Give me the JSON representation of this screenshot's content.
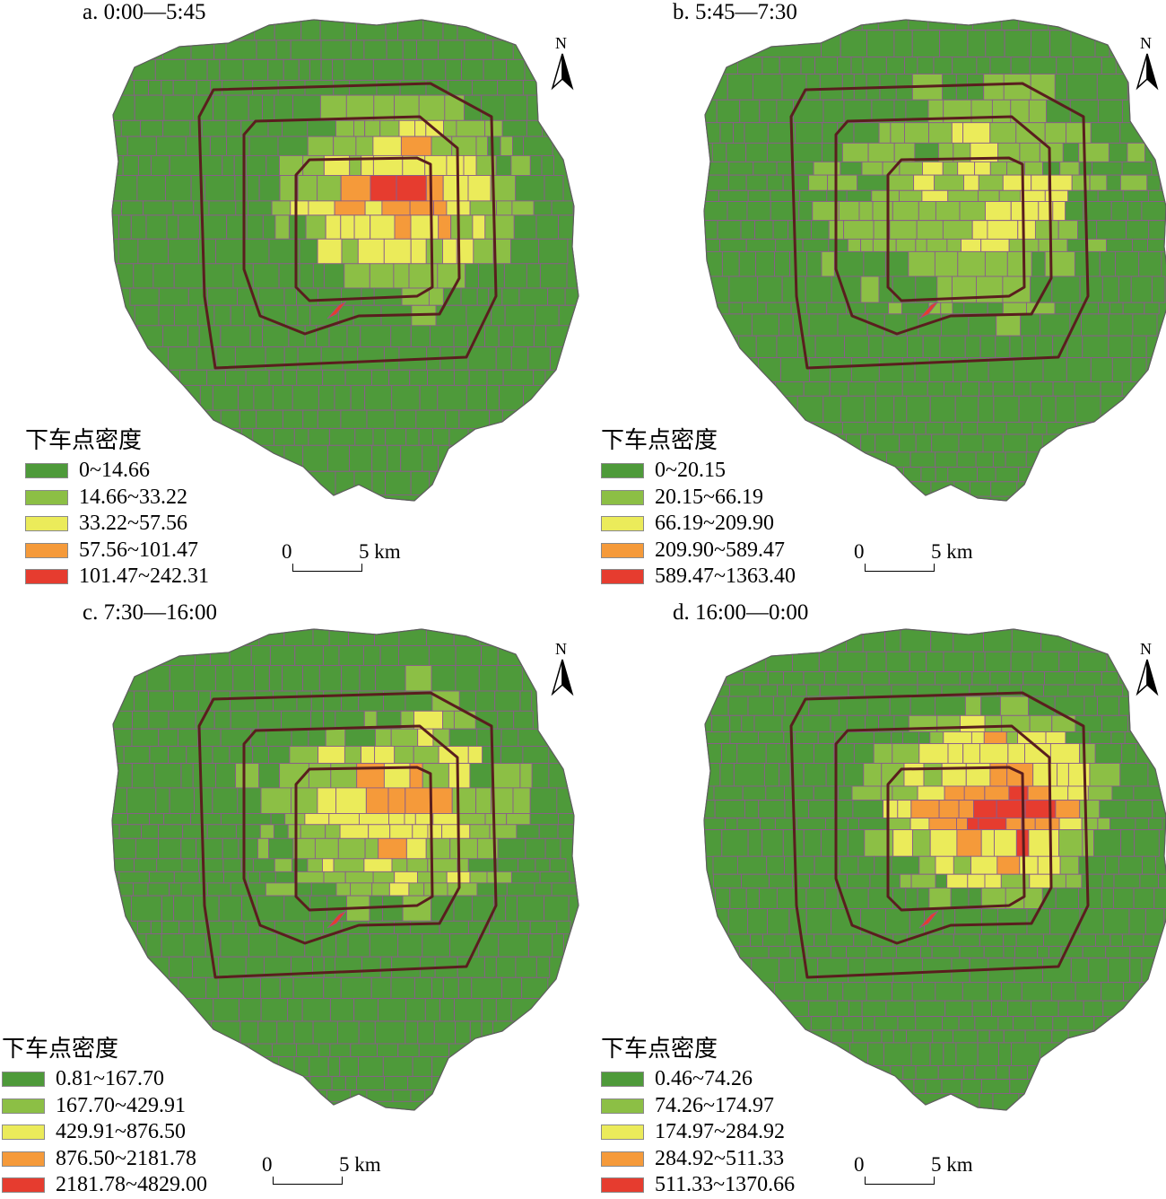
{
  "panels": [
    {
      "title": "a. 0:00—5:45",
      "legend_title": "下车点密度",
      "legend": [
        "0~14.66",
        "14.66~33.22",
        "33.22~57.56",
        "57.56~101.47",
        "101.47~242.31"
      ],
      "scale": {
        "zero": "0",
        "end": "5 km"
      },
      "north": "N",
      "hot_level": 3
    },
    {
      "title": "b. 5:45—7:30",
      "legend_title": "下车点密度",
      "legend": [
        "0~20.15",
        "20.15~66.19",
        "66.19~209.90",
        "209.90~589.47",
        "589.47~1363.40"
      ],
      "scale": {
        "zero": "0",
        "end": "5 km"
      },
      "north": "N",
      "hot_level": 1
    },
    {
      "title": "c. 7:30—16:00",
      "legend_title": "下车点密度",
      "legend": [
        "0.81~167.70",
        "167.70~429.91",
        "429.91~876.50",
        "876.50~2181.78",
        "2181.78~4829.00"
      ],
      "scale": {
        "zero": "0",
        "end": "5 km"
      },
      "north": "N",
      "hot_level": 2
    },
    {
      "title": "d. 16:00—0:00",
      "legend_title": "下车点密度",
      "legend": [
        "0.46~74.26",
        "74.26~174.97",
        "174.97~284.92",
        "284.92~511.33",
        "511.33~1370.66"
      ],
      "scale": {
        "zero": "0",
        "end": "5 km"
      },
      "north": "N",
      "hot_level": 4
    }
  ],
  "colors": {
    "class1": "#4e9a3a",
    "class2": "#8cbf45",
    "class3": "#ebeb5a",
    "class4": "#f59a3a",
    "class5": "#e63c2f",
    "boundary": "#8a5e8a",
    "ring_road": "#5a1e1e"
  }
}
